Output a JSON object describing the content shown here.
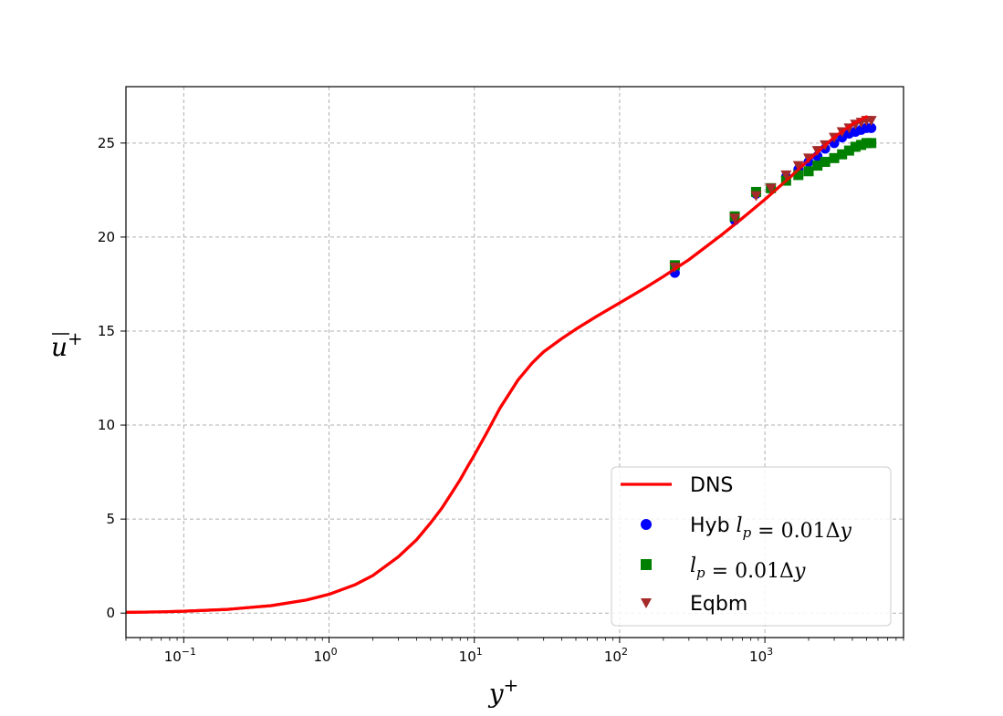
{
  "chart_data": {
    "type": "line",
    "xscale": "log",
    "xlim": [
      0.04,
      9000
    ],
    "ylim": [
      -1.3,
      28
    ],
    "xticks": [
      {
        "value": 0.1,
        "base": "10",
        "exp": "−1"
      },
      {
        "value": 1,
        "base": "10",
        "exp": "0"
      },
      {
        "value": 10,
        "base": "10",
        "exp": "1"
      },
      {
        "value": 100,
        "base": "10",
        "exp": "2"
      },
      {
        "value": 1000,
        "base": "10",
        "exp": "3"
      }
    ],
    "yticks": [
      0,
      5,
      10,
      15,
      20,
      25
    ],
    "xlabel_main": "y",
    "xlabel_sup": "+",
    "ylabel_main": "u",
    "ylabel_sup": "+",
    "grid": true,
    "grid_style": "dashed",
    "legend_position": "lower-right",
    "series": [
      {
        "name": "DNS",
        "kind": "line",
        "color": "#ff0000",
        "x": [
          0.04,
          0.07,
          0.1,
          0.2,
          0.4,
          0.7,
          1.0,
          1.5,
          2,
          3,
          4,
          5,
          6,
          7,
          8,
          9,
          10,
          12,
          15,
          20,
          25,
          30,
          40,
          50,
          70,
          100,
          150,
          200,
          300,
          500,
          700,
          1000,
          1500,
          2000,
          3000,
          4000,
          5000
        ],
        "y": [
          0.04,
          0.07,
          0.1,
          0.2,
          0.4,
          0.7,
          1.0,
          1.5,
          2.0,
          3.0,
          3.9,
          4.8,
          5.6,
          6.4,
          7.1,
          7.8,
          8.4,
          9.5,
          10.9,
          12.4,
          13.3,
          13.9,
          14.6,
          15.1,
          15.8,
          16.5,
          17.3,
          17.9,
          18.8,
          20.1,
          21.0,
          22.0,
          23.2,
          24.1,
          25.3,
          26.0,
          26.4
        ],
        "label_parts": [
          {
            "text": "DNS",
            "style": "text"
          }
        ]
      },
      {
        "name": "Hyb l_p = 0.01Δy",
        "kind": "scatter",
        "marker": "circle",
        "color": "#0000ff",
        "x": [
          240,
          620,
          870,
          1100,
          1400,
          1700,
          2000,
          2300,
          2600,
          3000,
          3400,
          3800,
          4200,
          4600,
          5000,
          5400
        ],
        "y": [
          18.1,
          20.9,
          22.3,
          22.6,
          23.2,
          23.6,
          24.0,
          24.3,
          24.7,
          25.0,
          25.3,
          25.5,
          25.6,
          25.7,
          25.8,
          25.8
        ]
      },
      {
        "name": "l_p = 0.01Δy",
        "kind": "scatter",
        "marker": "square",
        "color": "#008000",
        "x": [
          240,
          620,
          870,
          1100,
          1400,
          1700,
          2000,
          2300,
          2600,
          3000,
          3400,
          3800,
          4200,
          4600,
          5000,
          5400
        ],
        "y": [
          18.5,
          21.1,
          22.4,
          22.6,
          23.0,
          23.3,
          23.5,
          23.8,
          24.0,
          24.2,
          24.4,
          24.6,
          24.8,
          24.9,
          25.0,
          25.0
        ]
      },
      {
        "name": "Eqbm",
        "kind": "scatter",
        "marker": "triangle-down",
        "color": "#a52a2a",
        "x": [
          240,
          620,
          870,
          1100,
          1400,
          1700,
          2000,
          2300,
          2600,
          3000,
          3400,
          3800,
          4200,
          4600,
          5000,
          5400
        ],
        "y": [
          18.4,
          21.0,
          22.2,
          22.6,
          23.3,
          23.8,
          24.2,
          24.6,
          24.9,
          25.3,
          25.6,
          25.8,
          26.0,
          26.1,
          26.2,
          26.2
        ]
      }
    ],
    "legend": [
      {
        "parts": [
          {
            "t": "DNS",
            "s": "text"
          }
        ]
      },
      {
        "parts": [
          {
            "t": "Hyb ",
            "s": "text"
          },
          {
            "t": "l",
            "s": "math"
          },
          {
            "t": "p",
            "s": "sub"
          },
          {
            "t": " = 0.01Δ",
            "s": "math-upright"
          },
          {
            "t": "y",
            "s": "math"
          }
        ]
      },
      {
        "parts": [
          {
            "t": "l",
            "s": "math"
          },
          {
            "t": "p",
            "s": "sub"
          },
          {
            "t": " = 0.01Δ",
            "s": "math-upright"
          },
          {
            "t": "y",
            "s": "math"
          }
        ]
      },
      {
        "parts": [
          {
            "t": "Eqbm",
            "s": "text"
          }
        ]
      }
    ]
  }
}
